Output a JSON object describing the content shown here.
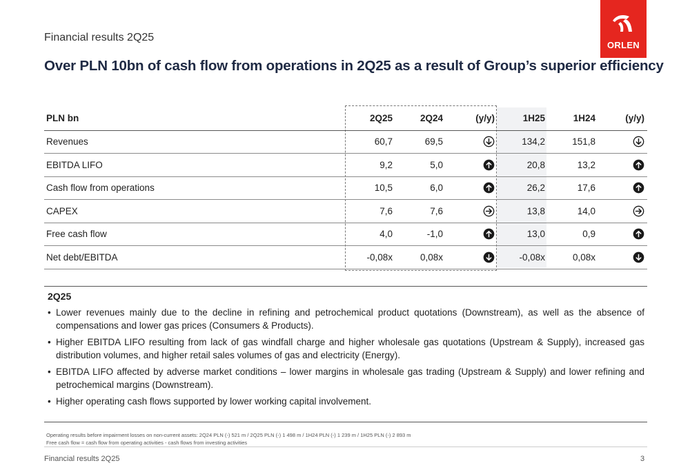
{
  "header": {
    "subtitle": "Financial results 2Q25",
    "headline": "Over PLN 10bn of cash flow from operations in 2Q25 as a result of Group’s superior efficiency",
    "logo_text": "ORLEN"
  },
  "table": {
    "columns": [
      "PLN bn",
      "2Q25",
      "2Q24",
      "(y/y)",
      "1H25",
      "1H24",
      "(y/y)"
    ],
    "rows": [
      {
        "label": "Revenues",
        "q25": "60,7",
        "q24": "69,5",
        "yy1": "down-outline",
        "h25": "134,2",
        "h24": "151,8",
        "yy2": "down-outline"
      },
      {
        "label": "EBITDA LIFO",
        "q25": "9,2",
        "q24": "5,0",
        "yy1": "up-filled",
        "h25": "20,8",
        "h24": "13,2",
        "yy2": "up-filled"
      },
      {
        "label": "Cash flow from operations",
        "q25": "10,5",
        "q24": "6,0",
        "yy1": "up-filled",
        "h25": "26,2",
        "h24": "17,6",
        "yy2": "up-filled"
      },
      {
        "label": "CAPEX",
        "q25": "7,6",
        "q24": "7,6",
        "yy1": "right-outline",
        "h25": "13,8",
        "h24": "14,0",
        "yy2": "right-outline"
      },
      {
        "label": "Free cash flow",
        "q25": "4,0",
        "q24": "-1,0",
        "yy1": "up-filled",
        "h25": "13,0",
        "h24": "0,9",
        "yy2": "up-filled"
      },
      {
        "label": "Net debt/EBITDA",
        "q25": "-0,08x",
        "q24": "0,08x",
        "yy1": "down-filled",
        "h25": "-0,08x",
        "h24": "0,08x",
        "yy2": "down-filled"
      }
    ]
  },
  "comment": {
    "title": "2Q25",
    "bullets": [
      "Lower revenues mainly due to the decline in refining and petrochemical product quotations (Downstream), as well as the absence of compensations and lower gas prices (Consumers & Products).",
      "Higher EBITDA LIFO resulting from lack of gas windfall charge and higher wholesale gas quotations (Upstream & Supply), increased gas distribution volumes, and higher retail sales volumes of gas and electricity (Energy).",
      "EBITDA LIFO affected by adverse market conditions – lower margins in wholesale gas trading (Upstream & Supply) and lower refining and petrochemical margins (Downstream).",
      "Higher operating cash flows supported by lower working capital involvement."
    ]
  },
  "footnotes": {
    "line1": "Operating results before impairment losses on non-current assets: 2Q24 PLN (-) 521 m / 2Q25 PLN (-) 1 498 m / 1H24 PLN (-) 1 239 m / 1H25 PLN (-) 2 893 m",
    "line2": "Free cash flow = cash flow from operating activities - cash flows from investing activities"
  },
  "footer": {
    "left": "Financial results 2Q25",
    "page": "3"
  },
  "colors": {
    "brand_red": "#e5261f",
    "headline": "#1f2a44",
    "icon": "#1a1a1a"
  }
}
